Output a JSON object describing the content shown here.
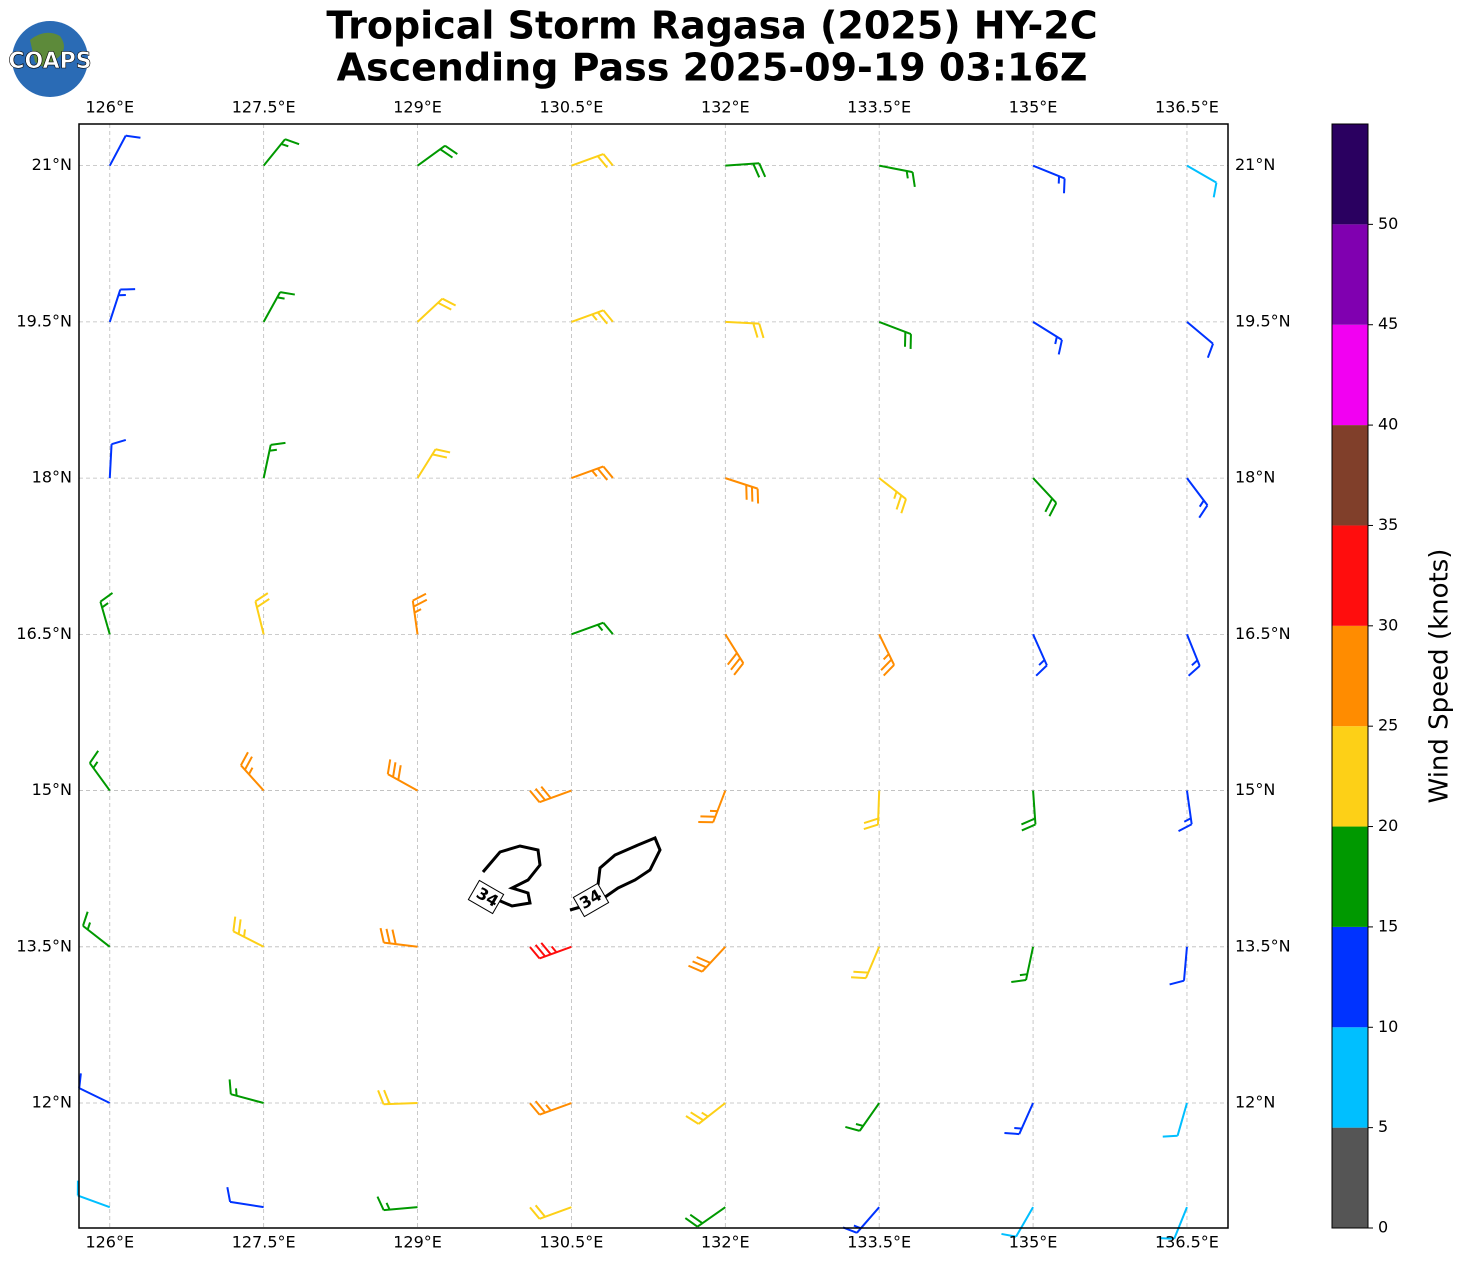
{
  "chart_data": {
    "type": "wind-barbs",
    "title": [
      "Tropical Storm Ragasa (2025) HY-2C",
      "Ascending Pass 2025-09-19 03:16Z"
    ],
    "logo": "COAPS",
    "xlim": [
      125.7,
      136.9
    ],
    "ylim": [
      10.8,
      21.4
    ],
    "xticks": [
      {
        "value": 126,
        "label": "126°E"
      },
      {
        "value": 127.5,
        "label": "127.5°E"
      },
      {
        "value": 129,
        "label": "129°E"
      },
      {
        "value": 130.5,
        "label": "130.5°E"
      },
      {
        "value": 132,
        "label": "132°E"
      },
      {
        "value": 133.5,
        "label": "133.5°E"
      },
      {
        "value": 135,
        "label": "135°E"
      },
      {
        "value": 136.5,
        "label": "136.5°E"
      }
    ],
    "yticks": [
      {
        "value": 12,
        "label": "12°N"
      },
      {
        "value": 13.5,
        "label": "13.5°N"
      },
      {
        "value": 15,
        "label": "15°N"
      },
      {
        "value": 16.5,
        "label": "16.5°N"
      },
      {
        "value": 18,
        "label": "18°N"
      },
      {
        "value": 19.5,
        "label": "19.5°N"
      },
      {
        "value": 21,
        "label": "21°N"
      }
    ],
    "grid": true,
    "barbs": {
      "lon": [
        126,
        127.5,
        129,
        130.5,
        132,
        133.5,
        135,
        136.5,
        126,
        127.5,
        129,
        130.5,
        132,
        133.5,
        135,
        136.5,
        126,
        127.5,
        129,
        130.5,
        132,
        133.5,
        135,
        136.5,
        126,
        127.5,
        129,
        130.5,
        132,
        133.5,
        135,
        136.5,
        126,
        127.5,
        129,
        130.5,
        132,
        133.5,
        135,
        136.5,
        126,
        127.5,
        129,
        130.5,
        132,
        133.5,
        135,
        136.5,
        126,
        127.5,
        129,
        130.5,
        132,
        133.5,
        135,
        136.5,
        126,
        127.5,
        129,
        130.5,
        132,
        133.5,
        135,
        136.5
      ],
      "lat": [
        21,
        21,
        21,
        21,
        21,
        21,
        21,
        21,
        19.5,
        19.5,
        19.5,
        19.5,
        19.5,
        19.5,
        19.5,
        19.5,
        18,
        18,
        18,
        18,
        18,
        18,
        18,
        18,
        16.5,
        16.5,
        16.5,
        16.5,
        16.5,
        16.5,
        16.5,
        16.5,
        15,
        15,
        15,
        15,
        15,
        15,
        15,
        15,
        13.5,
        13.5,
        13.5,
        13.5,
        13.5,
        13.5,
        13.5,
        13.5,
        12,
        12,
        12,
        12,
        12,
        12,
        12,
        12,
        11,
        11,
        11,
        11,
        11,
        11,
        11,
        11
      ],
      "speed": [
        12,
        17,
        18,
        21,
        19,
        17,
        13,
        9,
        13,
        17,
        21,
        23,
        22,
        19,
        14,
        12,
        12,
        17,
        22,
        27,
        28,
        24,
        18,
        13,
        16,
        21,
        26,
        17,
        28,
        26,
        14,
        13,
        17,
        26,
        28,
        29,
        27,
        22,
        18,
        13,
        16,
        24,
        28,
        33,
        29,
        22,
        17,
        12,
        12,
        16,
        22,
        26,
        23,
        17,
        13,
        9,
        8,
        12,
        17,
        21,
        18,
        14,
        9,
        8
      ],
      "direction": [
        28,
        39,
        54,
        70,
        86,
        101,
        112,
        120,
        18,
        29,
        47,
        70,
        93,
        111,
        122,
        130,
        3,
        12,
        32,
        70,
        108,
        128,
        137,
        143,
        344,
        346,
        352,
        70,
        148,
        154,
        156,
        158,
        324,
        318,
        299,
        250,
        201,
        182,
        176,
        172,
        308,
        297,
        277,
        250,
        223,
        203,
        192,
        185,
        296,
        285,
        268,
        250,
        232,
        215,
        204,
        196,
        290,
        279,
        265,
        250,
        235,
        221,
        210,
        202
      ]
    },
    "contours": [
      34,
      34
    ],
    "colorbar": {
      "label": "Wind Speed (knots)",
      "lim": [
        0,
        55
      ],
      "bounds": [
        0,
        5,
        10,
        15,
        20,
        25,
        30,
        35,
        40,
        45,
        50,
        55
      ],
      "colors": [
        "#555555",
        "#00bfff",
        "#0033ff",
        "#009900",
        "#fdd017",
        "#ff8c00",
        "#ff0d0d",
        "#803f2a",
        "#f200f2",
        "#8000b0",
        "#2a0060"
      ],
      "ticks": [
        0,
        5,
        10,
        15,
        20,
        25,
        30,
        35,
        40,
        45,
        50
      ]
    }
  }
}
